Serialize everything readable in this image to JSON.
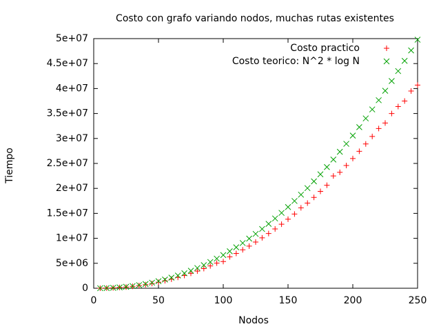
{
  "chart_data": {
    "type": "scatter",
    "title": "Costo con grafo variando nodos, muchas rutas existentes",
    "x_label": "Nodos",
    "y_label": "Tiempo",
    "x": [
      5,
      10,
      15,
      20,
      25,
      30,
      35,
      40,
      45,
      50,
      55,
      60,
      65,
      70,
      75,
      80,
      85,
      90,
      95,
      100,
      105,
      110,
      115,
      120,
      125,
      130,
      135,
      140,
      145,
      150,
      155,
      160,
      165,
      170,
      175,
      180,
      185,
      190,
      195,
      200,
      205,
      210,
      215,
      220,
      225,
      230,
      235,
      240,
      245,
      250
    ],
    "series": [
      {
        "name": "Costo practico",
        "color": "#ff0000",
        "marker": "plus",
        "values": [
          5000,
          28000,
          75000,
          150000,
          250000,
          380000,
          540000,
          730000,
          950000,
          1200000,
          1500000,
          1810000,
          2170000,
          2560000,
          2980000,
          3440000,
          3940000,
          4470000,
          5040000,
          5350000,
          6290000,
          6980000,
          7700000,
          8450000,
          9250000,
          10100000,
          10960000,
          11880000,
          12830000,
          13830000,
          14860000,
          16100000,
          17050000,
          18200000,
          19400000,
          20630000,
          22500000,
          23230000,
          24590000,
          25990000,
          27430000,
          28900000,
          30400000,
          32000000,
          33100000,
          35000000,
          36400000,
          37500000,
          39500000,
          40700000
        ]
      },
      {
        "name": "Costo teorico: N^2 * log N",
        "color": "#00a000",
        "marker": "cross",
        "values": [
          5805,
          33219,
          87905,
          172877,
          290241,
          441621,
          628340,
          851508,
          1112110,
          1410970,
          1748870,
          2126480,
          2544460,
          3003360,
          3503700,
          4046020,
          4630790,
          5258440,
          5929330,
          6643860,
          7402400,
          8205490,
          9053200,
          9945940,
          10884100,
          11867900,
          12897500,
          13973400,
          15095700,
          16264800,
          17480800,
          18744100,
          20054800,
          21413200,
          22819300,
          24273800,
          25776200,
          27327300,
          28926800,
          30575600,
          32273100,
          34019600,
          35816100,
          37662000,
          39557400,
          41502700,
          43498000,
          45543700,
          47639400,
          49786300
        ]
      }
    ],
    "xlim": [
      0,
      250
    ],
    "xticks": [
      0,
      50,
      100,
      150,
      200,
      250
    ],
    "ylim": [
      0,
      50000000
    ],
    "yticks": [
      0,
      {
        "value": 5000000,
        "label": "5e+06"
      },
      {
        "value": 10000000,
        "label": "1e+07"
      },
      {
        "value": 15000000,
        "label": "1.5e+07"
      },
      {
        "value": 20000000,
        "label": "2e+07"
      },
      {
        "value": 25000000,
        "label": "2.5e+07"
      },
      {
        "value": 30000000,
        "label": "3e+07"
      },
      {
        "value": 35000000,
        "label": "3.5e+07"
      },
      {
        "value": 40000000,
        "label": "4e+07"
      },
      {
        "value": 45000000,
        "label": "4.5e+07"
      },
      {
        "value": 50000000,
        "label": "5e+07"
      }
    ],
    "legend": "top-right",
    "grid": false
  }
}
